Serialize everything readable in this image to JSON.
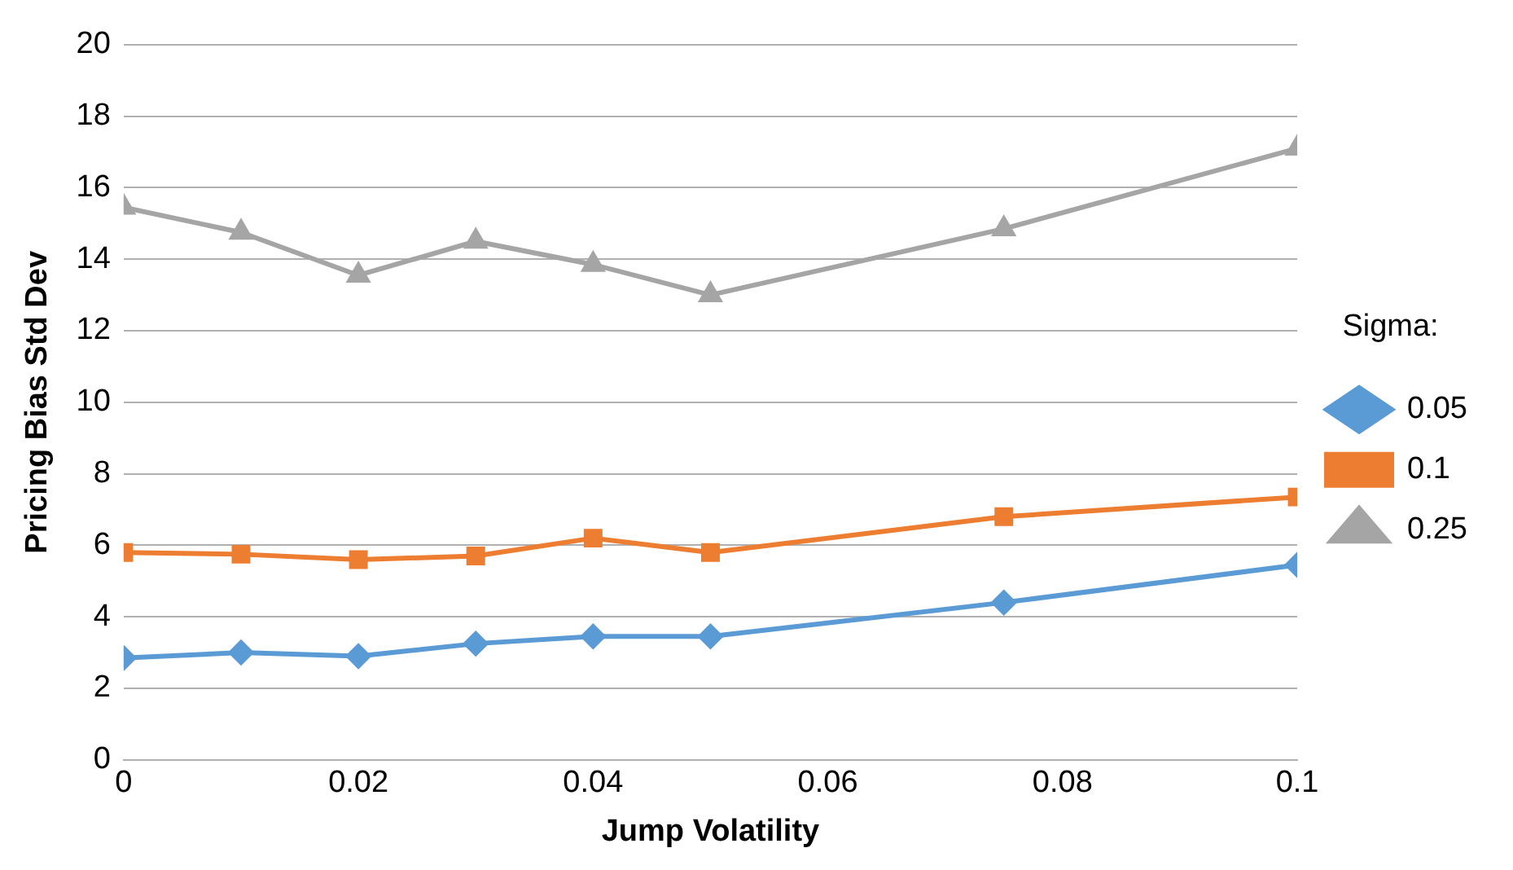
{
  "chart_data": {
    "type": "line",
    "xlabel": "Jump Volatility",
    "ylabel": "Pricing Bias Std Dev",
    "legend_title": "Sigma:",
    "x": [
      0,
      0.01,
      0.02,
      0.03,
      0.04,
      0.05,
      0.075,
      0.1
    ],
    "series": [
      {
        "name": "0.05",
        "color": "#5b9bd5",
        "marker": "diamond",
        "values": [
          2.85,
          3.0,
          2.9,
          3.25,
          3.45,
          3.45,
          4.4,
          5.45
        ]
      },
      {
        "name": "0.1",
        "color": "#ed7d31",
        "marker": "square",
        "values": [
          5.8,
          5.75,
          5.6,
          5.7,
          6.2,
          5.8,
          6.8,
          7.35
        ]
      },
      {
        "name": "0.25",
        "color": "#a5a5a5",
        "marker": "triangle",
        "values": [
          15.45,
          14.75,
          13.55,
          14.5,
          13.85,
          13.0,
          14.85,
          17.1
        ]
      }
    ],
    "xlim": [
      0,
      0.1
    ],
    "xticks": [
      0,
      0.02,
      0.04,
      0.06,
      0.08,
      0.1
    ],
    "ylim": [
      0,
      20
    ],
    "yticks": [
      0,
      2,
      4,
      6,
      8,
      10,
      12,
      14,
      16,
      18,
      20
    ],
    "grid": "y",
    "legend": "right",
    "line_style": "solid"
  }
}
